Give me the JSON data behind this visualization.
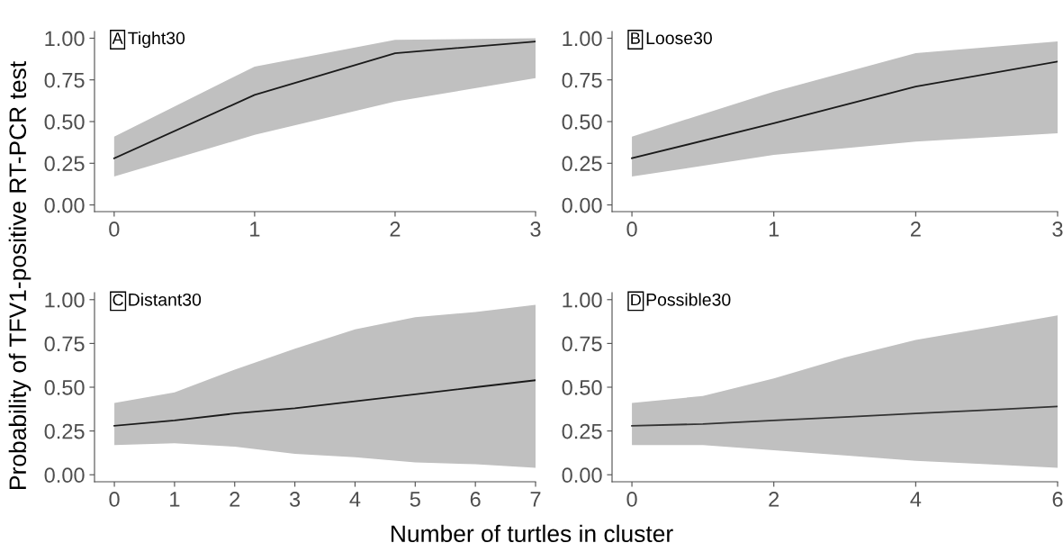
{
  "chart_data": [
    {
      "type": "line",
      "title": "Tight30",
      "annotations": [
        "A"
      ],
      "ylabel": "Probability of TFV1-positive RT-PCR test",
      "x": [
        0,
        1,
        2,
        3
      ],
      "xlim": [
        -0.14,
        3.0
      ],
      "xticks": [
        0,
        1,
        2,
        3
      ],
      "ylim": [
        -0.04,
        1.04
      ],
      "yticks": [
        {
          "value": 0,
          "label": "0.00"
        },
        {
          "value": 0.25,
          "label": "0.25"
        },
        {
          "value": 0.5,
          "label": "0.50"
        },
        {
          "value": 0.75,
          "label": "0.75"
        },
        {
          "value": 1,
          "label": "1.00"
        }
      ],
      "grid": false,
      "legend": false,
      "marker": "none",
      "line_style": "solid",
      "series": [
        {
          "color": "#1a1a1a",
          "values": [
            0.28,
            0.66,
            0.91,
            0.98
          ],
          "lower": [
            0.17,
            0.42,
            0.62,
            0.76
          ],
          "upper": [
            0.41,
            0.83,
            0.99,
            1.0
          ]
        }
      ]
    },
    {
      "type": "line",
      "title": "Loose30",
      "annotations": [
        "B"
      ],
      "x": [
        0,
        1,
        2,
        3
      ],
      "xlim": [
        -0.14,
        3.0
      ],
      "xticks": [
        0,
        1,
        2,
        3
      ],
      "ylim": [
        -0.04,
        1.04
      ],
      "yticks": [
        {
          "value": 0,
          "label": "0.00"
        },
        {
          "value": 0.25,
          "label": "0.25"
        },
        {
          "value": 0.5,
          "label": "0.50"
        },
        {
          "value": 0.75,
          "label": "0.75"
        },
        {
          "value": 1,
          "label": "1.00"
        }
      ],
      "grid": false,
      "legend": false,
      "marker": "none",
      "line_style": "solid",
      "series": [
        {
          "color": "#1a1a1a",
          "values": [
            0.28,
            0.49,
            0.71,
            0.86
          ],
          "lower": [
            0.17,
            0.3,
            0.38,
            0.43
          ],
          "upper": [
            0.41,
            0.68,
            0.91,
            0.98
          ]
        }
      ]
    },
    {
      "type": "line",
      "title": "Distant30",
      "annotations": [
        "C"
      ],
      "xlabel": "Number of turtles in cluster",
      "x": [
        0,
        1,
        2,
        3,
        4,
        5,
        6,
        7
      ],
      "xlim": [
        -0.33,
        7.0
      ],
      "xticks": [
        0,
        1,
        2,
        3,
        4,
        5,
        6,
        7
      ],
      "ylim": [
        -0.04,
        1.04
      ],
      "yticks": [
        {
          "value": 0,
          "label": "0.00"
        },
        {
          "value": 0.25,
          "label": "0.25"
        },
        {
          "value": 0.5,
          "label": "0.50"
        },
        {
          "value": 0.75,
          "label": "0.75"
        },
        {
          "value": 1,
          "label": "1.00"
        }
      ],
      "grid": false,
      "legend": false,
      "marker": "none",
      "line_style": "solid",
      "series": [
        {
          "color": "#1a1a1a",
          "values": [
            0.28,
            0.31,
            0.35,
            0.38,
            0.42,
            0.46,
            0.5,
            0.54
          ],
          "lower": [
            0.17,
            0.18,
            0.16,
            0.12,
            0.1,
            0.07,
            0.06,
            0.04
          ],
          "upper": [
            0.41,
            0.47,
            0.6,
            0.72,
            0.83,
            0.9,
            0.93,
            0.97
          ]
        }
      ]
    },
    {
      "type": "line",
      "title": "Possible30",
      "annotations": [
        "D"
      ],
      "x": [
        0,
        1,
        2,
        3,
        4,
        5,
        6
      ],
      "xlim": [
        -0.28,
        6.0
      ],
      "xticks": [
        0,
        2,
        4,
        6
      ],
      "ylim": [
        -0.04,
        1.04
      ],
      "yticks": [
        {
          "value": 0,
          "label": "0.00"
        },
        {
          "value": 0.25,
          "label": "0.25"
        },
        {
          "value": 0.5,
          "label": "0.50"
        },
        {
          "value": 0.75,
          "label": "0.75"
        },
        {
          "value": 1,
          "label": "1.00"
        }
      ],
      "grid": false,
      "legend": false,
      "marker": "none",
      "line_style": "solid",
      "series": [
        {
          "color": "#333333",
          "values": [
            0.28,
            0.29,
            0.31,
            0.33,
            0.35,
            0.37,
            0.39
          ],
          "lower": [
            0.17,
            0.17,
            0.14,
            0.11,
            0.08,
            0.06,
            0.04
          ],
          "upper": [
            0.41,
            0.45,
            0.55,
            0.67,
            0.77,
            0.84,
            0.91
          ]
        }
      ]
    }
  ]
}
